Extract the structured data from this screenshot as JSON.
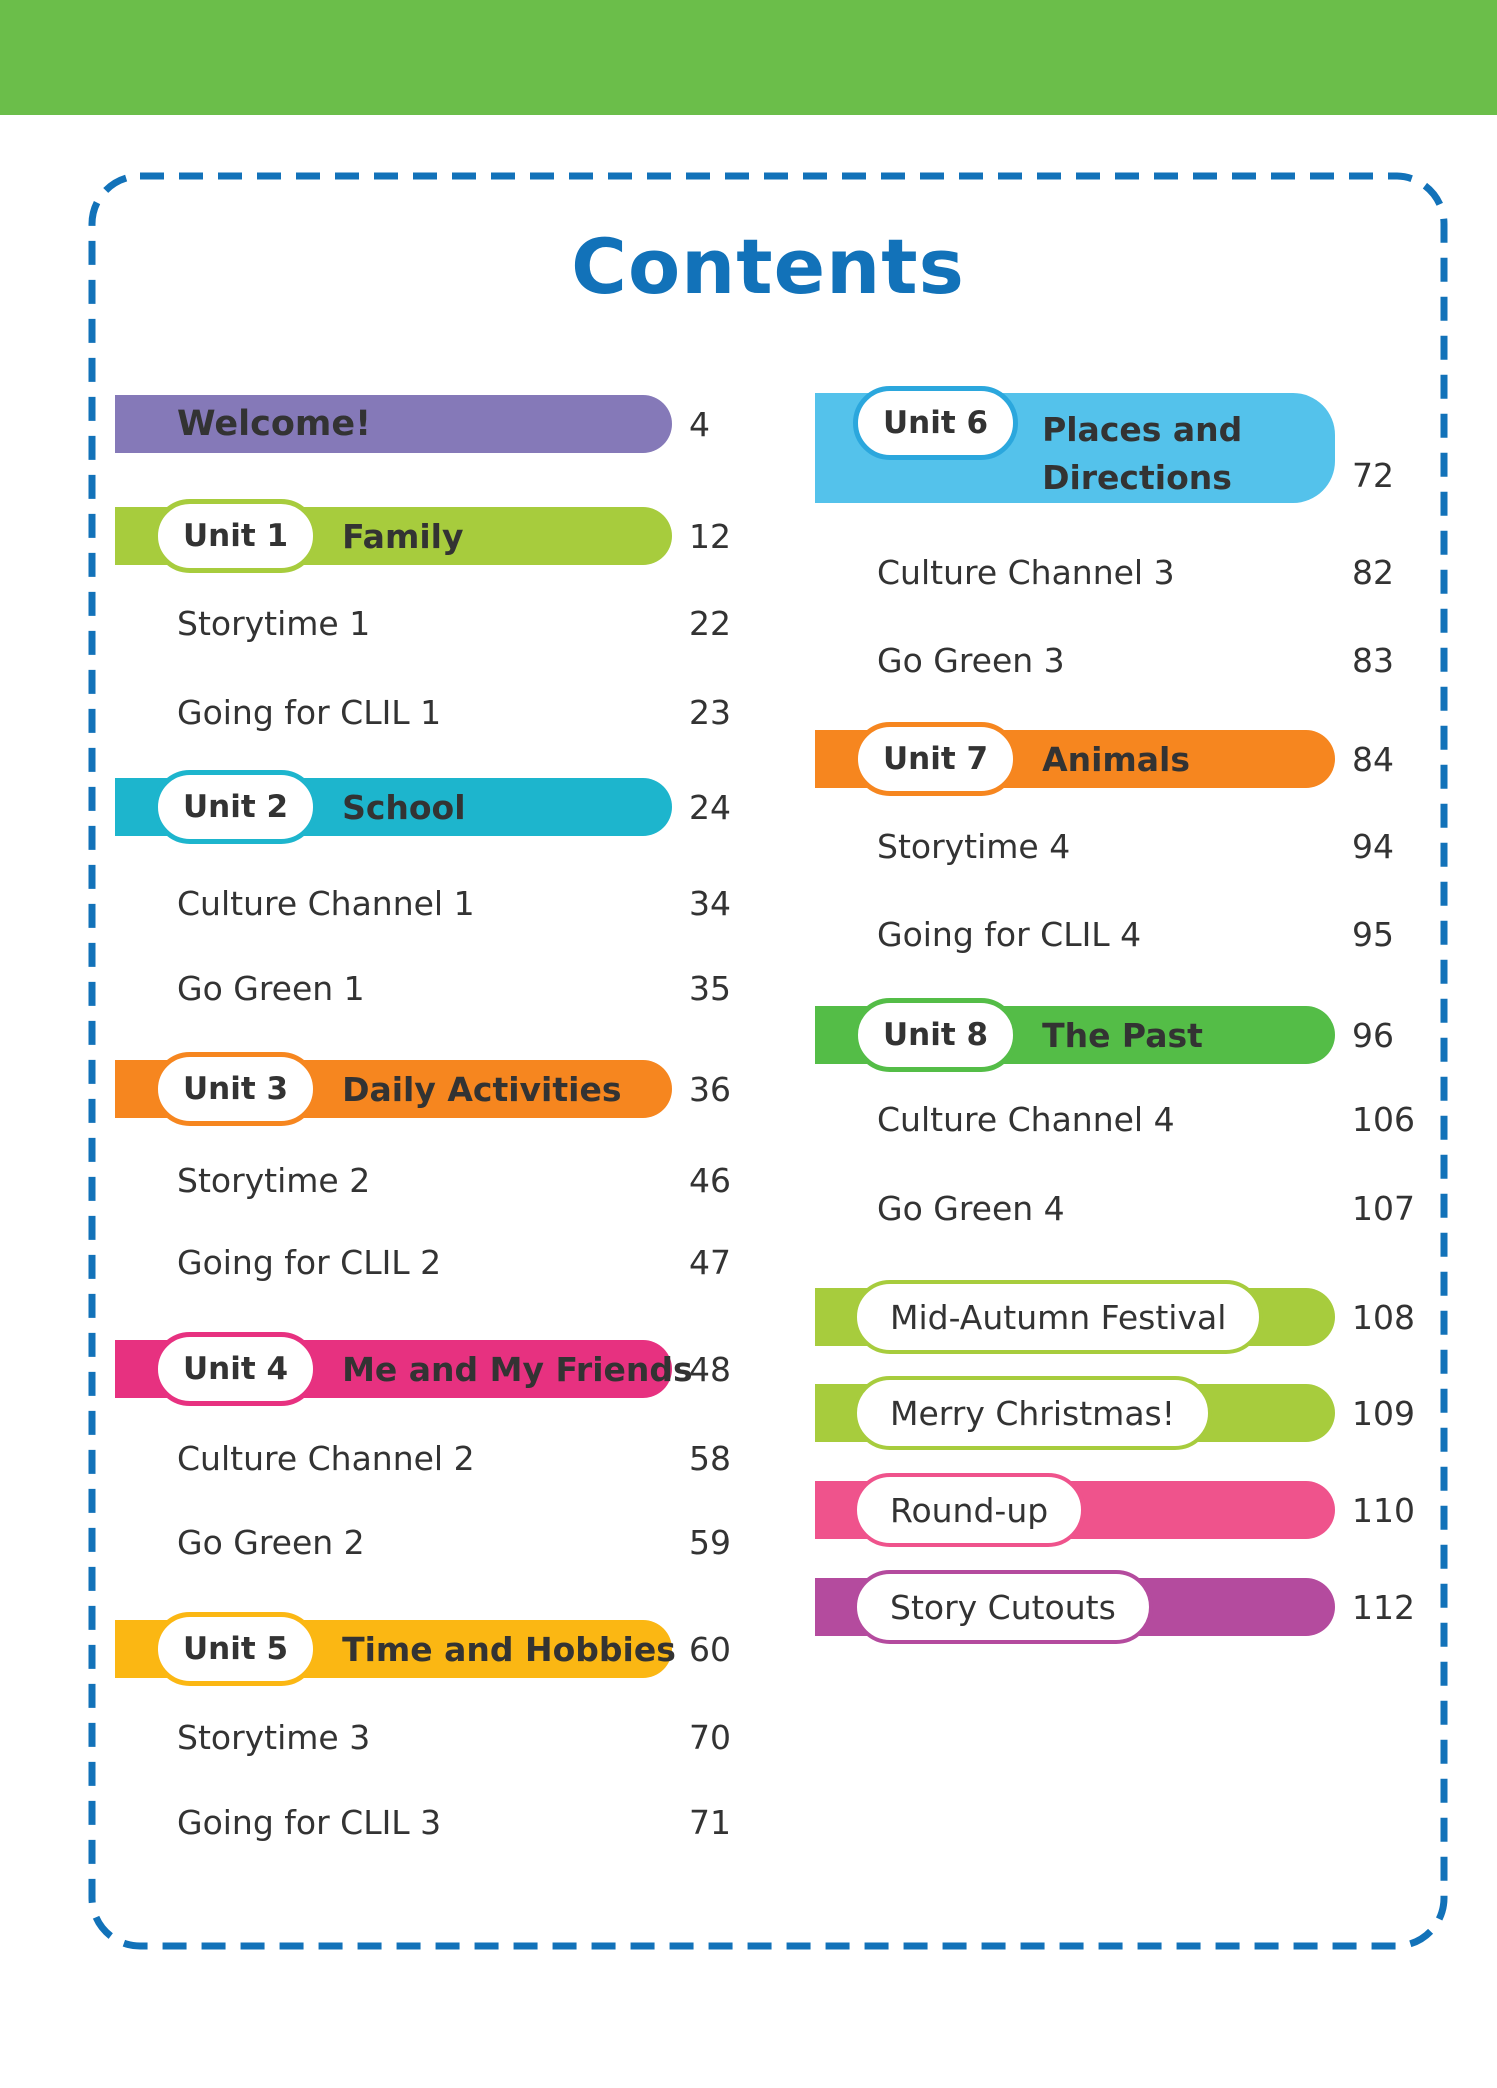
{
  "theme": {
    "band_color": "#6BBE4A",
    "border_color": "#1272B9",
    "title_color": "#1272B9",
    "text_color": "#333333",
    "background": "#FFFFFF"
  },
  "title": {
    "text": "Contents"
  },
  "columns": {
    "left": [
      {
        "kind": "bar-plain",
        "label": "Welcome!",
        "page": "4",
        "color": "#8579B8"
      },
      {
        "kind": "bar-unit",
        "unit": "Unit 1",
        "title": "Family",
        "page": "12",
        "color": "#A7CC3D"
      },
      {
        "kind": "entry",
        "label": "Storytime 1",
        "page": "22"
      },
      {
        "kind": "entry",
        "label": "Going for CLIL 1",
        "page": "23"
      },
      {
        "kind": "bar-unit",
        "unit": "Unit 2",
        "title": "School",
        "page": "24",
        "color": "#1DB5CD"
      },
      {
        "kind": "entry",
        "label": "Culture Channel 1",
        "page": "34"
      },
      {
        "kind": "entry",
        "label": "Go Green 1",
        "page": "35"
      },
      {
        "kind": "bar-unit",
        "unit": "Unit 3",
        "title": "Daily Activities",
        "page": "36",
        "color": "#F6861F"
      },
      {
        "kind": "entry",
        "label": "Storytime 2",
        "page": "46"
      },
      {
        "kind": "entry",
        "label": "Going for CLIL 2",
        "page": "47"
      },
      {
        "kind": "bar-unit",
        "unit": "Unit 4",
        "title": "Me and My Friends",
        "page": "48",
        "color": "#E73180"
      },
      {
        "kind": "entry",
        "label": "Culture Channel 2",
        "page": "58"
      },
      {
        "kind": "entry",
        "label": "Go Green 2",
        "page": "59"
      },
      {
        "kind": "bar-unit",
        "unit": "Unit 5",
        "title": "Time and Hobbies",
        "page": "60",
        "color": "#FBB713"
      },
      {
        "kind": "entry",
        "label": "Storytime 3",
        "page": "70"
      },
      {
        "kind": "entry",
        "label": "Going for CLIL 3",
        "page": "71"
      }
    ],
    "right": [
      {
        "kind": "bar-unit",
        "unit": "Unit 6",
        "title_lines": [
          "Places and",
          "Directions"
        ],
        "page": "72",
        "color": "#54C2EB",
        "pill_border": "#2BA7DD",
        "two_line": true
      },
      {
        "kind": "entry",
        "label": "Culture Channel 3",
        "page": "82"
      },
      {
        "kind": "entry",
        "label": "Go Green 3",
        "page": "83"
      },
      {
        "kind": "bar-unit",
        "unit": "Unit 7",
        "title": "Animals",
        "page": "84",
        "color": "#F6861F"
      },
      {
        "kind": "entry",
        "label": "Storytime 4",
        "page": "94"
      },
      {
        "kind": "entry",
        "label": "Going for CLIL 4",
        "page": "95"
      },
      {
        "kind": "bar-unit",
        "unit": "Unit 8",
        "title": "The Past",
        "page": "96",
        "color": "#54BD47"
      },
      {
        "kind": "entry",
        "label": "Culture Channel 4",
        "page": "106"
      },
      {
        "kind": "entry",
        "label": "Go Green 4",
        "page": "107"
      },
      {
        "kind": "bar-pill",
        "label": "Mid-Autumn Festival",
        "page": "108",
        "color": "#A7CC3D"
      },
      {
        "kind": "bar-pill",
        "label": "Merry Christmas!",
        "page": "109",
        "color": "#A7CC3D"
      },
      {
        "kind": "bar-pill",
        "label": "Round-up",
        "page": "110",
        "color": "#EF538C"
      },
      {
        "kind": "bar-pill",
        "label": "Story Cutouts",
        "page": "112",
        "color": "#B44B9E"
      }
    ]
  }
}
